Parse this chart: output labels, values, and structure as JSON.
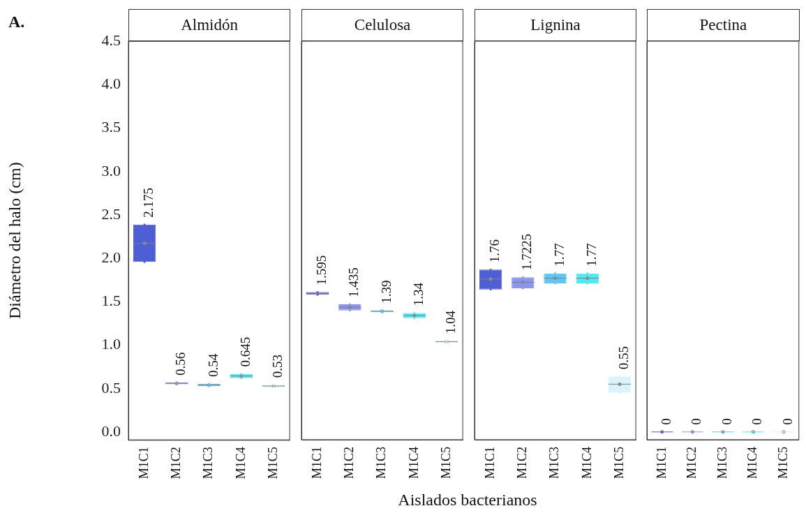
{
  "chart_data": [
    {
      "type": "box",
      "title": "Almidón",
      "ylabel": "Diámetro del halo (cm)",
      "annotations": [
        "A.",
        "Aislados bacterianos"
      ],
      "categories": [
        "M1C1",
        "M1C2",
        "M1C3",
        "M1C4",
        "M1C5"
      ],
      "colors": [
        "#4e5fd6",
        "#8c95f0",
        "#5ec8f5",
        "#50e8f5",
        "#d8f4fa"
      ],
      "boxes": [
        {
          "low": 1.96,
          "q1": 1.96,
          "median": 2.175,
          "q3": 2.39,
          "high": 2.39,
          "mean": 2.175
        },
        {
          "low": 0.55,
          "q1": 0.55,
          "median": 0.56,
          "q3": 0.57,
          "high": 0.57,
          "mean": 0.56
        },
        {
          "low": 0.53,
          "q1": 0.53,
          "median": 0.54,
          "q3": 0.555,
          "high": 0.555,
          "mean": 0.54
        },
        {
          "low": 0.62,
          "q1": 0.62,
          "median": 0.645,
          "q3": 0.67,
          "high": 0.67,
          "mean": 0.645
        },
        {
          "low": 0.515,
          "q1": 0.515,
          "median": 0.53,
          "q3": 0.545,
          "high": 0.545,
          "mean": 0.53
        }
      ],
      "value_labels": [
        "2.175",
        "0.56",
        "0.54",
        "0.645",
        "0.53"
      ],
      "ylim": [
        -0.09,
        4.5
      ],
      "yticks": [
        {
          "value": 0,
          "label": "0.0"
        },
        0.5,
        {
          "value": 1,
          "label": "1.0"
        },
        1.5,
        {
          "value": 2,
          "label": "2.0"
        },
        2.5,
        {
          "value": 3,
          "label": "3.0"
        },
        3.5,
        {
          "value": 4,
          "label": "4.0"
        },
        4.5
      ],
      "grid": false,
      "legend": false
    },
    {
      "type": "box",
      "title": "Celulosa",
      "categories": [
        "M1C1",
        "M1C2",
        "M1C3",
        "M1C4",
        "M1C5"
      ],
      "colors": [
        "#4e5fd6",
        "#8c95f0",
        "#5ec8f5",
        "#50e8f5",
        "#d8f4fa"
      ],
      "boxes": [
        {
          "low": 1.58,
          "q1": 1.58,
          "median": 1.595,
          "q3": 1.61,
          "high": 1.61,
          "mean": 1.595
        },
        {
          "low": 1.4,
          "q1": 1.4,
          "median": 1.435,
          "q3": 1.47,
          "high": 1.47,
          "mean": 1.435
        },
        {
          "low": 1.38,
          "q1": 1.38,
          "median": 1.39,
          "q3": 1.4,
          "high": 1.4,
          "mean": 1.39
        },
        {
          "low": 1.31,
          "q1": 1.31,
          "median": 1.34,
          "q3": 1.37,
          "high": 1.37,
          "mean": 1.34
        },
        {
          "low": 1.03,
          "q1": 1.03,
          "median": 1.04,
          "q3": 1.05,
          "high": 1.05,
          "mean": 1.04
        }
      ],
      "value_labels": [
        "1.595",
        "1.435",
        "1.39",
        "1.34",
        "1.04"
      ],
      "ylim": [
        -0.09,
        4.5
      ],
      "yticks": [
        0,
        0.5,
        1,
        1.5,
        2,
        2.5,
        3,
        3.5,
        4,
        4.5
      ],
      "tick_labels": "x",
      "grid": false,
      "legend": false
    },
    {
      "type": "box",
      "title": "Lignina",
      "categories": [
        "M1C1",
        "M1C2",
        "M1C3",
        "M1C4",
        "M1C5"
      ],
      "colors": [
        "#4e5fd6",
        "#8c95f0",
        "#5ec8f5",
        "#50e8f5",
        "#d8f4fa"
      ],
      "boxes": [
        {
          "low": 1.64,
          "q1": 1.64,
          "median": 1.76,
          "q3": 1.87,
          "high": 1.87,
          "mean": 1.76
        },
        {
          "low": 1.655,
          "q1": 1.655,
          "median": 1.7225,
          "q3": 1.78,
          "high": 1.78,
          "mean": 1.7225
        },
        {
          "low": 1.71,
          "q1": 1.71,
          "median": 1.77,
          "q3": 1.825,
          "high": 1.825,
          "mean": 1.77
        },
        {
          "low": 1.71,
          "q1": 1.71,
          "median": 1.77,
          "q3": 1.825,
          "high": 1.825,
          "mean": 1.77
        },
        {
          "low": 0.45,
          "q1": 0.45,
          "median": 0.55,
          "q3": 0.64,
          "high": 0.64,
          "mean": 0.55
        }
      ],
      "value_labels": [
        "1.76",
        "1.7225",
        "1.77",
        "1.77",
        "0.55"
      ],
      "ylim": [
        -0.09,
        4.5
      ],
      "yticks": [
        0,
        0.5,
        1,
        1.5,
        2,
        2.5,
        3,
        3.5,
        4,
        4.5
      ],
      "tick_labels": "x",
      "grid": false,
      "legend": false
    },
    {
      "type": "box",
      "title": "Pectina",
      "categories": [
        "M1C1",
        "M1C2",
        "M1C3",
        "M1C4",
        "M1C5"
      ],
      "colors": [
        "#4e5fd6",
        "#8c95f0",
        "#5ec8f5",
        "#50e8f5",
        "#d8f4fa"
      ],
      "boxes": [
        {
          "low": 0,
          "q1": 0,
          "median": 0,
          "q3": 0,
          "high": 0,
          "mean": 0
        },
        {
          "low": 0,
          "q1": 0,
          "median": 0,
          "q3": 0,
          "high": 0,
          "mean": 0
        },
        {
          "low": 0,
          "q1": 0,
          "median": 0,
          "q3": 0,
          "high": 0,
          "mean": 0
        },
        {
          "low": 0,
          "q1": 0,
          "median": 0,
          "q3": 0,
          "high": 0,
          "mean": 0
        },
        {
          "low": 0,
          "q1": 0,
          "median": 0,
          "q3": 0,
          "high": 0,
          "mean": 0
        }
      ],
      "value_labels": [
        "0",
        "0",
        "0",
        "0",
        "0"
      ],
      "ylim": [
        -0.09,
        4.5
      ],
      "yticks": [
        0,
        0.5,
        1,
        1.5,
        2,
        2.5,
        3,
        3.5,
        4,
        4.5
      ],
      "tick_labels": "x",
      "grid": false,
      "legend": false
    }
  ]
}
